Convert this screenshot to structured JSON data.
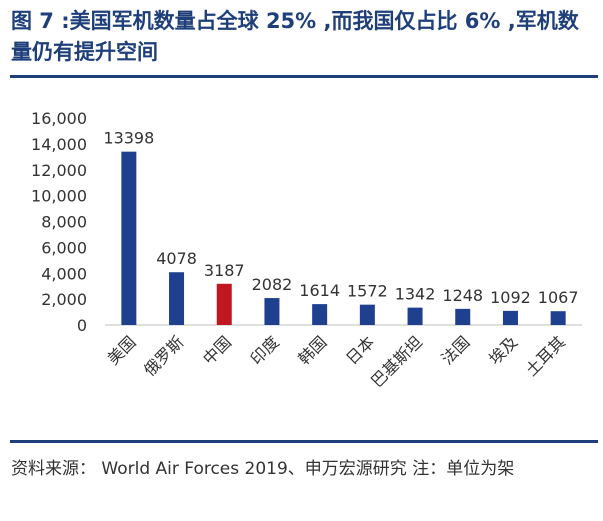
{
  "title": "图 7 :美国军机数量占全球 25% ,而我国仅占比 6% ,军机数量仍有提升空间",
  "source": "资料来源： World Air Forces 2019、申万宏源研究 注：单位为架",
  "colors": {
    "bar": "#1f3f8f",
    "highlight": "#c0161f",
    "title": "#1f3f7a"
  },
  "chart_data": {
    "type": "bar",
    "title": "",
    "xlabel": "",
    "ylabel": "",
    "categories": [
      "美国",
      "俄罗斯",
      "中国",
      "印度",
      "韩国",
      "日本",
      "巴基斯坦",
      "法国",
      "埃及",
      "土耳其"
    ],
    "values": [
      13398,
      4078,
      3187,
      2082,
      1614,
      1572,
      1342,
      1248,
      1092,
      1067
    ],
    "highlight_index": 2,
    "ylim": [
      0,
      16000
    ],
    "yticks": [
      0,
      2000,
      4000,
      6000,
      8000,
      10000,
      12000,
      14000,
      16000
    ],
    "ytick_labels": [
      "0",
      "2,000",
      "4,000",
      "6,000",
      "8,000",
      "10,000",
      "12,000",
      "14,000",
      "16,000"
    ],
    "grid": false,
    "data_labels": true
  }
}
